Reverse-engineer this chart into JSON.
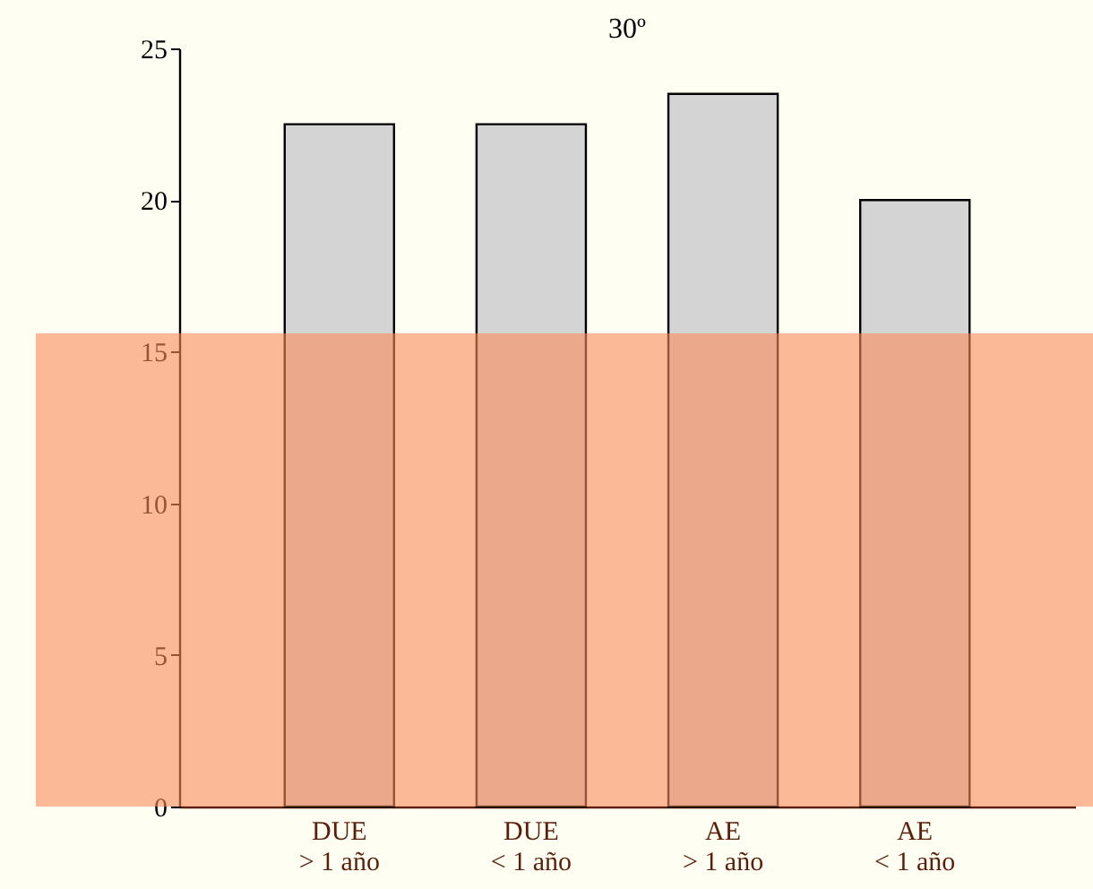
{
  "chart_data": {
    "type": "bar",
    "title": "30º",
    "categories": [
      "DUE\n> 1 año",
      "DUE\n< 1 año",
      "AE\n> 1 año",
      "AE\n< 1 año"
    ],
    "series": [
      {
        "color": "#d4d4d4",
        "values": [
          22.5,
          22.5,
          23.5,
          20
        ]
      }
    ],
    "ylim": [
      0,
      25
    ],
    "yticks": [
      0,
      5,
      10,
      15,
      20,
      25
    ],
    "grid": false,
    "bands": [
      {
        "axis": "y",
        "from": 0,
        "to": 15.6,
        "color": "#fa8a5a"
      }
    ]
  }
}
